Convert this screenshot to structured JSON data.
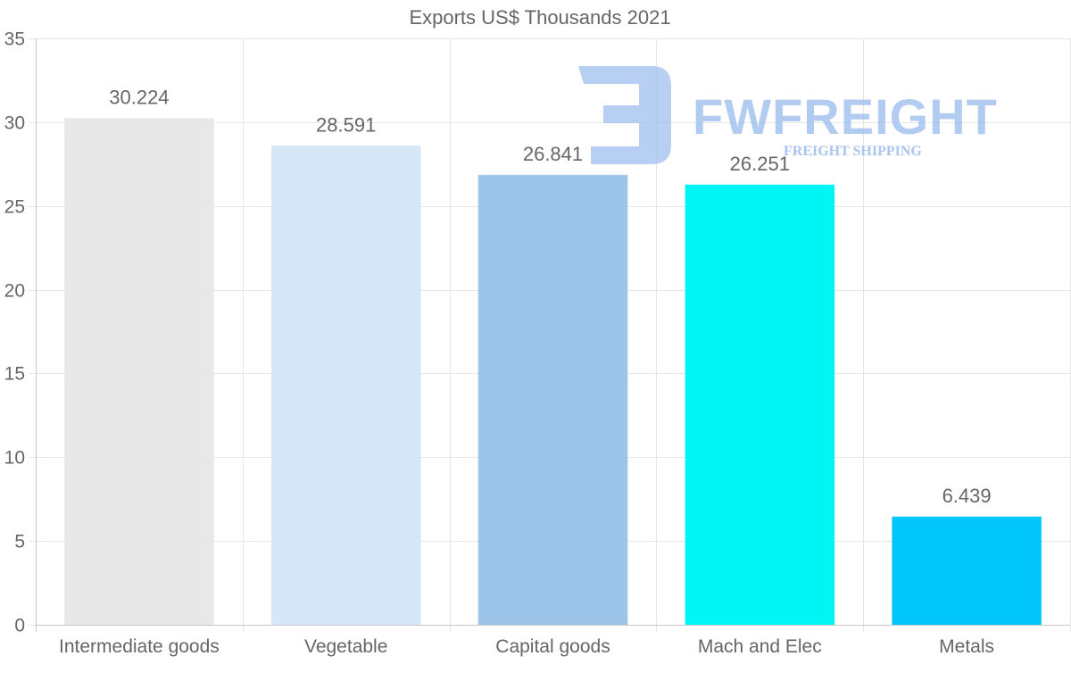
{
  "chart_data": {
    "type": "bar",
    "title": "Exports US$ Thousands 2021",
    "categories": [
      "Intermediate goods",
      "Vegetable",
      "Capital goods",
      "Mach and Elec",
      "Metals"
    ],
    "values": [
      30.224,
      28.591,
      26.841,
      26.251,
      6.439
    ],
    "value_labels": [
      "30.224",
      "28.591",
      "26.841",
      "26.251",
      "6.439"
    ],
    "colors": [
      "#e8e8e8",
      "#d6e7f8",
      "#9cc4e8",
      "#00f5f5",
      "#00c6fb"
    ],
    "ylim": [
      0,
      35
    ],
    "yticks": [
      0,
      5,
      10,
      15,
      20,
      25,
      30,
      35
    ],
    "xlabel": "",
    "ylabel": "",
    "grid": true,
    "legend": "none"
  },
  "watermark": {
    "brand": "FWFREIGHT",
    "tagline": "FREIGHT SHIPPING",
    "color": "#9fbfee"
  }
}
